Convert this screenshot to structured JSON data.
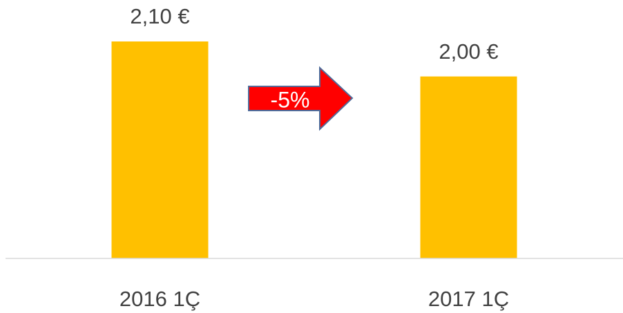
{
  "chart_data": {
    "type": "bar",
    "categories": [
      "2016 1Ç",
      "2017 1Ç"
    ],
    "values": [
      2.1,
      2.0
    ],
    "value_labels": [
      "2,10 €",
      "2,00 €"
    ],
    "color": "#ffc000",
    "ylim": [
      1.48,
      2.1
    ],
    "annotations": [
      "-5%"
    ]
  }
}
